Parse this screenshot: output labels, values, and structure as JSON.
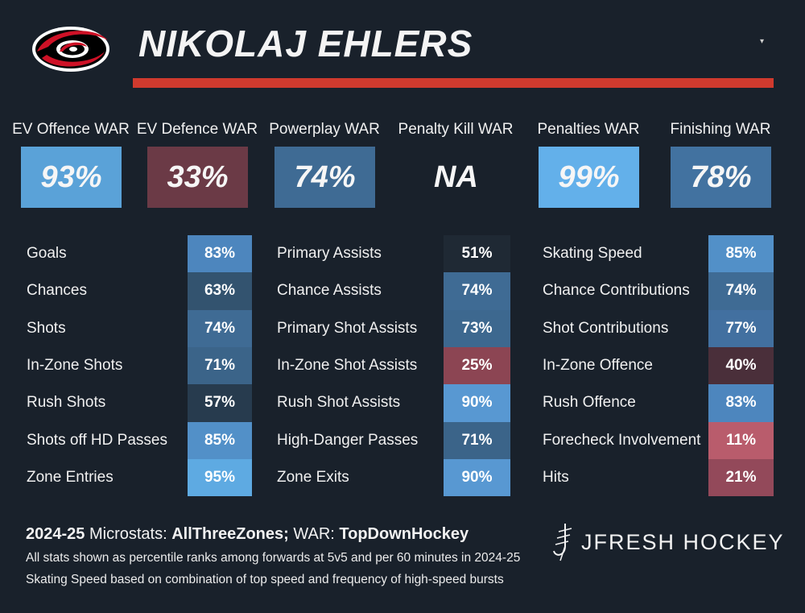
{
  "header": {
    "player_name": "NIKOLAJ EHLERS"
  },
  "war": [
    {
      "label": "EV Offence WAR",
      "value": "93%",
      "color": "#5aa2d8"
    },
    {
      "label": "EV Defence WAR",
      "value": "33%",
      "color": "#6b3a46"
    },
    {
      "label": "Powerplay WAR",
      "value": "74%",
      "color": "#3f6b94"
    },
    {
      "label": "Penalty Kill WAR",
      "value": "NA",
      "color": "#19212b"
    },
    {
      "label": "Penalties WAR",
      "value": "99%",
      "color": "#63b0ea"
    },
    {
      "label": "Finishing WAR",
      "value": "78%",
      "color": "#4272a0"
    }
  ],
  "columns": [
    {
      "rows": [
        {
          "label": "Goals",
          "value": "83%",
          "color": "#4d86be"
        },
        {
          "label": "Chances",
          "value": "63%",
          "color": "#33536f"
        },
        {
          "label": "Shots",
          "value": "74%",
          "color": "#3f6b94"
        },
        {
          "label": "In-Zone Shots",
          "value": "71%",
          "color": "#3b6489"
        },
        {
          "label": "Rush Shots",
          "value": "57%",
          "color": "#273b4e"
        },
        {
          "label": "Shots off HD Passes",
          "value": "85%",
          "color": "#5290c8"
        },
        {
          "label": "Zone Entries",
          "value": "95%",
          "color": "#5eaae2"
        }
      ]
    },
    {
      "rows": [
        {
          "label": "Primary Assists",
          "value": "51%",
          "color": "#1f2934"
        },
        {
          "label": "Chance Assists",
          "value": "74%",
          "color": "#3f6b94"
        },
        {
          "label": "Primary Shot Assists",
          "value": "73%",
          "color": "#3d688f"
        },
        {
          "label": "In-Zone Shot Assists",
          "value": "25%",
          "color": "#8c4553"
        },
        {
          "label": "Rush Shot Assists",
          "value": "90%",
          "color": "#5898d2"
        },
        {
          "label": "High-Danger Passes",
          "value": "71%",
          "color": "#3b6489"
        },
        {
          "label": "Zone Exits",
          "value": "90%",
          "color": "#5898d2"
        }
      ]
    },
    {
      "rows": [
        {
          "label": "Skating Speed",
          "value": "85%",
          "color": "#5290c8"
        },
        {
          "label": "Chance Contributions",
          "value": "74%",
          "color": "#3f6b94"
        },
        {
          "label": "Shot Contributions",
          "value": "77%",
          "color": "#4270a0"
        },
        {
          "label": "In-Zone Offence",
          "value": "40%",
          "color": "#4a2f3a"
        },
        {
          "label": "Rush Offence",
          "value": "83%",
          "color": "#4d86be"
        },
        {
          "label": "Forecheck Involvement",
          "value": "11%",
          "color": "#b95c6c"
        },
        {
          "label": "Hits",
          "value": "21%",
          "color": "#93495a"
        }
      ]
    }
  ],
  "footer": {
    "season": "2024-25",
    "microstats_label": " Microstats: ",
    "microstats_source": "AllThreeZones;",
    "war_label": " WAR: ",
    "war_source": "TopDownHockey",
    "note1": "All stats shown as percentile ranks among forwards at 5v5 and per 60 minutes in 2024-25",
    "note2": "Skating Speed based on combination of top speed and frequency of high-speed bursts",
    "brand": "JFRESH HOCKEY"
  },
  "icons": {
    "team_logo": "hurricanes-logo-icon",
    "brand_mark": "jfresh-logo-icon",
    "dropdown": "caret-down-icon"
  }
}
